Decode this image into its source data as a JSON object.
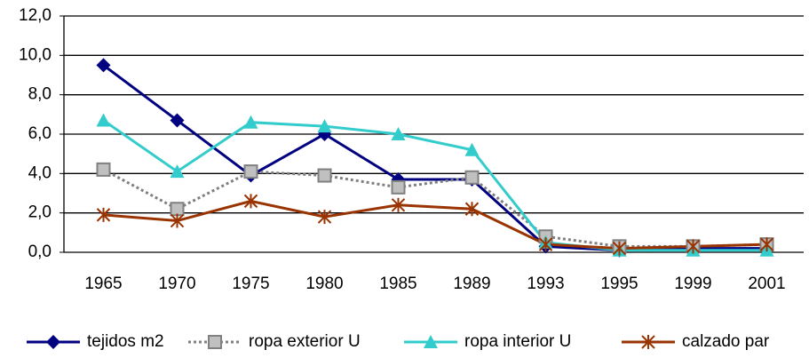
{
  "chart_data": {
    "type": "line",
    "categories": [
      "1965",
      "1970",
      "1975",
      "1980",
      "1985",
      "1989",
      "1993",
      "1995",
      "1999",
      "2001"
    ],
    "series": [
      {
        "name": "tejidos m2",
        "color": "#000080",
        "marker": "diamond",
        "dash": "solid",
        "values": [
          9.5,
          6.7,
          3.9,
          6.0,
          3.7,
          3.7,
          0.3,
          0.1,
          0.2,
          0.2
        ]
      },
      {
        "name": "ropa exterior U",
        "color": "#808080",
        "marker": "square",
        "dash": "dotted",
        "values": [
          4.2,
          2.2,
          4.1,
          3.9,
          3.3,
          3.8,
          0.8,
          0.3,
          0.3,
          0.4
        ]
      },
      {
        "name": "ropa interior U",
        "color": "#33cccc",
        "marker": "triangle",
        "dash": "solid",
        "values": [
          6.7,
          4.1,
          6.6,
          6.4,
          6.0,
          5.2,
          0.5,
          0.1,
          0.1,
          0.1
        ]
      },
      {
        "name": "calzado par",
        "color": "#993300",
        "marker": "star",
        "dash": "solid",
        "values": [
          1.9,
          1.6,
          2.6,
          1.8,
          2.4,
          2.2,
          0.4,
          0.2,
          0.3,
          0.4
        ]
      }
    ],
    "ylim": [
      0,
      12
    ],
    "yticks": [
      {
        "value": 0,
        "label": "0,0"
      },
      {
        "value": 2,
        "label": "2,0"
      },
      {
        "value": 4,
        "label": "4,0"
      },
      {
        "value": 6,
        "label": "6,0"
      },
      {
        "value": 8,
        "label": "8,0"
      },
      {
        "value": 10,
        "label": "10,0"
      },
      {
        "value": 12,
        "label": "12,0"
      }
    ],
    "grid": true,
    "legend": "bottom"
  }
}
